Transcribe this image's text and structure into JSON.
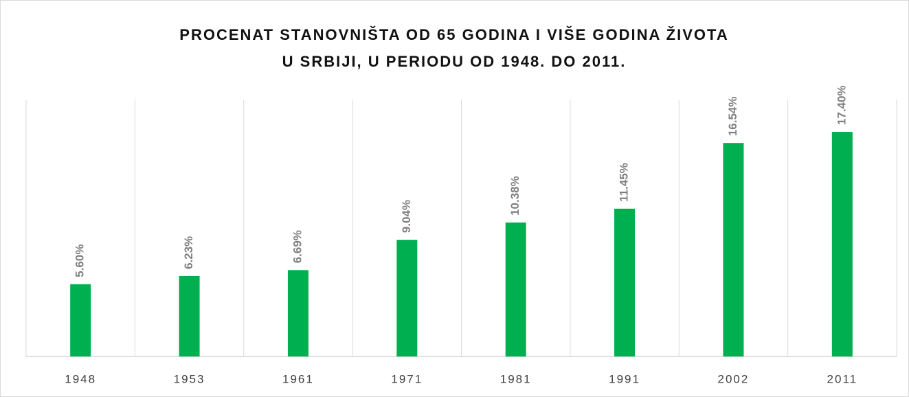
{
  "chart_data": {
    "type": "bar",
    "title": [
      "PROCENAT STANOVNIŠTA OD 65 GODINA I VIŠE GODINA ŽIVOTA",
      "U SRBIJI, U PERIODU OD 1948. DO 2011."
    ],
    "categories": [
      "1948",
      "1953",
      "1961",
      "1971",
      "1981",
      "1991",
      "2002",
      "2011"
    ],
    "values": [
      5.6,
      6.23,
      6.69,
      9.04,
      10.38,
      11.45,
      16.54,
      17.4
    ],
    "value_labels": [
      "5.60%",
      "6.23%",
      "6.69%",
      "9.04%",
      "10.38%",
      "11.45%",
      "16.54%",
      "17.40%"
    ],
    "color": "#00b050"
  }
}
